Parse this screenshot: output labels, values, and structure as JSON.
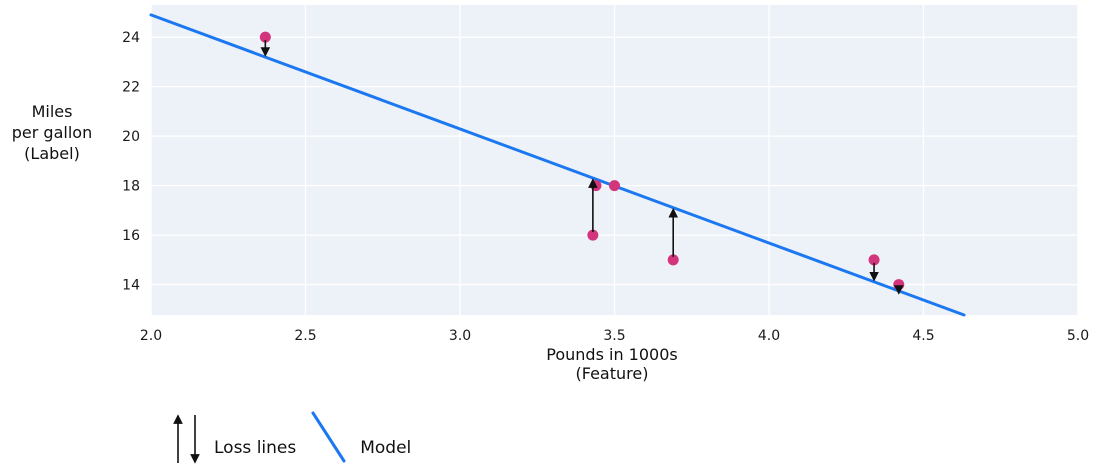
{
  "chart_data": {
    "type": "scatter",
    "title": "",
    "xlabel_lines": [
      "Pounds in 1000s",
      "(Feature)"
    ],
    "ylabel_lines": [
      "Miles",
      "per gallon",
      "(Label)"
    ],
    "x_ticks": [
      {
        "label": "2.0",
        "value": 2.0
      },
      {
        "label": "2.5",
        "value": 2.5
      },
      {
        "label": "3.0",
        "value": 3.0
      },
      {
        "label": "3.5",
        "value": 3.5
      },
      {
        "label": "4.0",
        "value": 4.0
      },
      {
        "label": "4.5",
        "value": 4.5
      },
      {
        "label": "5.0",
        "value": 5.0
      }
    ],
    "y_ticks": [
      {
        "label": "14",
        "value": 14
      },
      {
        "label": "16",
        "value": 16
      },
      {
        "label": "18",
        "value": 18
      },
      {
        "label": "20",
        "value": 20
      },
      {
        "label": "22",
        "value": 22
      },
      {
        "label": "24",
        "value": 24
      }
    ],
    "xlim": [
      2.0,
      5.0
    ],
    "ylim": [
      12.77,
      25.3
    ],
    "grid": true,
    "legend_position": "bottom-left",
    "points": [
      {
        "x": 3.5,
        "y": 18,
        "loss_arrow": false
      },
      {
        "x": 3.69,
        "y": 15,
        "loss_arrow": true
      },
      {
        "x": 3.44,
        "y": 18,
        "loss_arrow": false
      },
      {
        "x": 3.43,
        "y": 16,
        "loss_arrow": true
      },
      {
        "x": 4.34,
        "y": 15,
        "loss_arrow": true
      },
      {
        "x": 4.42,
        "y": 14,
        "loss_arrow": true
      },
      {
        "x": 2.37,
        "y": 24,
        "loss_arrow": true
      }
    ],
    "model_line": {
      "slope": -4.61,
      "intercept": 34.12
    },
    "colors": {
      "point": "#d2357b",
      "model": "#1b78f0",
      "loss_arrow": "#111111",
      "plot_bg": "#edf1f8",
      "grid": "#ffffff",
      "text": "#1a1a1a"
    }
  },
  "legend": {
    "loss_label": "Loss lines",
    "model_label": "Model"
  }
}
